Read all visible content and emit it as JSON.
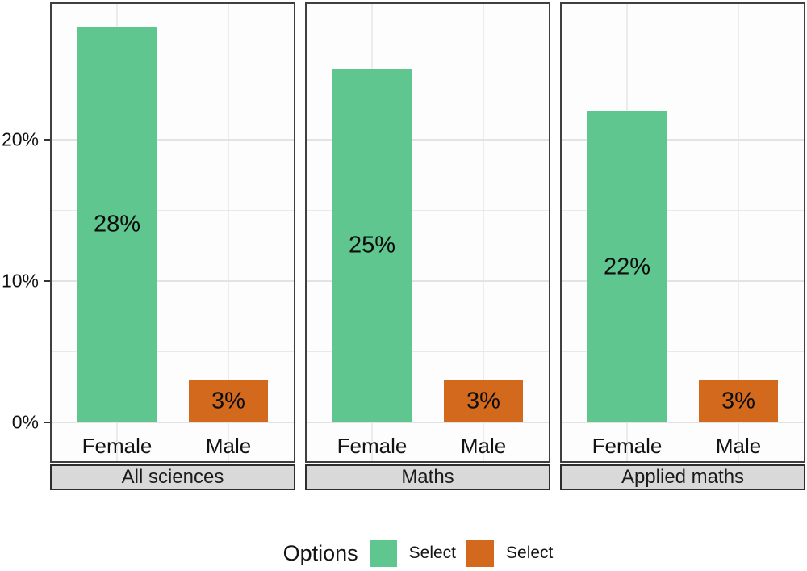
{
  "chart_data": {
    "type": "bar",
    "title": "",
    "y_axis": {
      "ticks": [
        {
          "label": "0%",
          "value": 0
        },
        {
          "label": "10%",
          "value": 10
        },
        {
          "label": "20%",
          "value": 20
        }
      ],
      "minor_values": [
        5,
        15,
        25
      ],
      "max": 29.6,
      "grid": true
    },
    "categories": [
      "Female",
      "Male"
    ],
    "facets": [
      {
        "label": "All sciences",
        "bars": [
          {
            "category": "Female",
            "value": 28,
            "display": "28%",
            "series": "female"
          },
          {
            "category": "Male",
            "value": 3,
            "display": "3%",
            "series": "male"
          }
        ]
      },
      {
        "label": "Maths",
        "bars": [
          {
            "category": "Female",
            "value": 25,
            "display": "25%",
            "series": "female"
          },
          {
            "category": "Male",
            "value": 3,
            "display": "3%",
            "series": "male"
          }
        ]
      },
      {
        "label": "Applied maths",
        "bars": [
          {
            "category": "Female",
            "value": 22,
            "display": "22%",
            "series": "female"
          },
          {
            "category": "Male",
            "value": 3,
            "display": "3%",
            "series": "male"
          }
        ]
      }
    ],
    "colors": {
      "female": "#60c690",
      "male": "#d2691c"
    },
    "legend": {
      "title": "Options",
      "position": "bottom",
      "items": [
        {
          "label": "Select",
          "color": "#60c690",
          "series": "female"
        },
        {
          "label": "Select",
          "color": "#d2691c",
          "series": "male"
        }
      ]
    }
  }
}
